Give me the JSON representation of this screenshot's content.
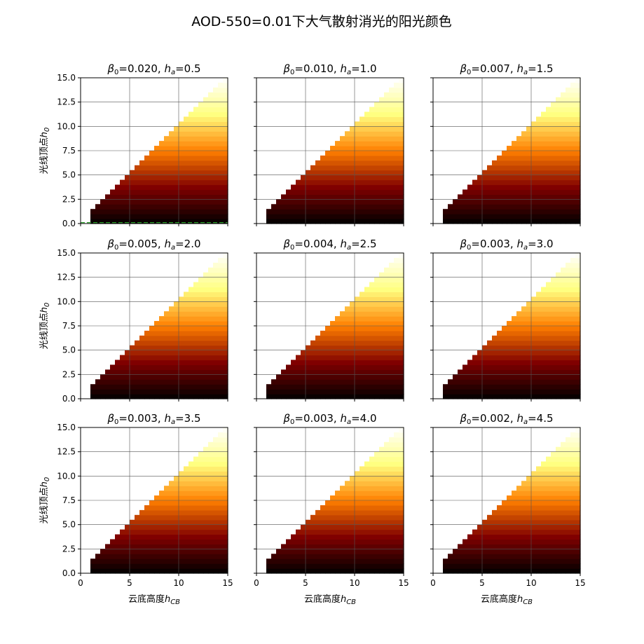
{
  "figure": {
    "title": "AOD-550=0.01下大气散射消光的阳光颜色"
  },
  "chart_data": {
    "type": "heatmap",
    "layout": {
      "rows": 3,
      "cols": 3
    },
    "shared": {
      "xlim": [
        0,
        15
      ],
      "ylim": [
        0,
        15
      ],
      "xticks": [
        "0",
        "5",
        "10",
        "15"
      ],
      "yticks": [
        "0.0",
        "2.5",
        "5.0",
        "7.5",
        "10.0",
        "12.5",
        "15.0"
      ],
      "xlabel": "云底高度h_CB",
      "ylabel": "光线顶点h_0",
      "grid": true,
      "cell_size": 0.5,
      "valid_region": "h_0 >= h_CB",
      "colormap": "afmhot",
      "color_value": "h_0 / 15"
    },
    "panels": [
      {
        "beta0": "0.020",
        "ha": "0.5",
        "reference_line_y": 0.1,
        "reference_line_color": "#2ca02c"
      },
      {
        "beta0": "0.010",
        "ha": "1.0"
      },
      {
        "beta0": "0.007",
        "ha": "1.5"
      },
      {
        "beta0": "0.005",
        "ha": "2.0"
      },
      {
        "beta0": "0.004",
        "ha": "2.5"
      },
      {
        "beta0": "0.003",
        "ha": "3.0"
      },
      {
        "beta0": "0.003",
        "ha": "3.5"
      },
      {
        "beta0": "0.003",
        "ha": "4.0"
      },
      {
        "beta0": "0.002",
        "ha": "4.5"
      }
    ]
  }
}
